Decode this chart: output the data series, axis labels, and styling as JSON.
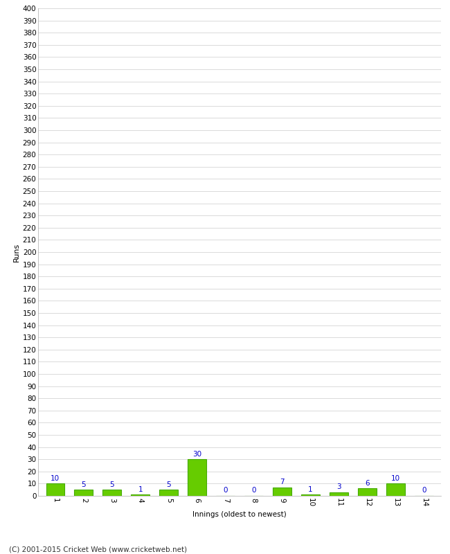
{
  "xlabel": "Innings (oldest to newest)",
  "ylabel": "Runs",
  "categories": [
    "1",
    "2",
    "3",
    "4",
    "5",
    "6",
    "7",
    "8",
    "9",
    "10",
    "11",
    "12",
    "13",
    "14"
  ],
  "values": [
    10,
    5,
    5,
    1,
    5,
    30,
    0,
    0,
    7,
    1,
    3,
    6,
    10,
    0
  ],
  "bar_color": "#66cc00",
  "bar_edge_color": "#44aa00",
  "label_color": "#0000cc",
  "ylim": [
    0,
    400
  ],
  "ytick_step": 10,
  "background_color": "#ffffff",
  "grid_color": "#cccccc",
  "footer_text": "(C) 2001-2015 Cricket Web (www.cricketweb.net)",
  "label_fontsize": 7.5,
  "axis_fontsize": 7.5,
  "ylabel_fontsize": 8,
  "footer_fontsize": 7.5
}
